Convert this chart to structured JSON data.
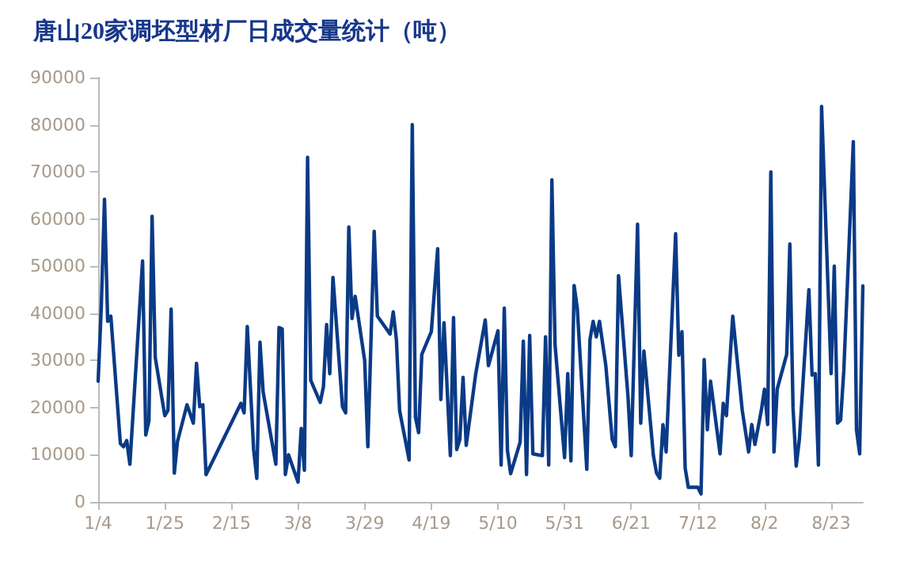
{
  "chart_data": {
    "type": "line",
    "title": "唐山20家调坯型材厂日成交量统计（吨）",
    "x": [
      "--01-04",
      "--01-05",
      "--01-06",
      "--01-07",
      "--01-08",
      "--01-11",
      "--01-12",
      "--01-13",
      "--01-14",
      "--01-18",
      "--01-19",
      "--01-20",
      "--01-21",
      "--01-22",
      "--01-25",
      "--01-26",
      "--01-27",
      "--01-28",
      "--01-29",
      "--02-01",
      "--02-03",
      "--02-04",
      "--02-05",
      "--02-06",
      "--02-07",
      "--02-18",
      "--02-19",
      "--02-20",
      "--02-22",
      "--02-23",
      "--02-24",
      "--02-25",
      "--03-01",
      "--03-02",
      "--03-03",
      "--03-04",
      "--03-05",
      "--03-08",
      "--03-09",
      "--03-10",
      "--03-11",
      "--03-12",
      "--03-15",
      "--03-16",
      "--03-17",
      "--03-18",
      "--03-19",
      "--03-22",
      "--03-23",
      "--03-24",
      "--03-25",
      "--03-26",
      "--03-29",
      "--03-30",
      "--04-01",
      "--04-02",
      "--04-06",
      "--04-07",
      "--04-08",
      "--04-09",
      "--04-12",
      "--04-13",
      "--04-14",
      "--04-15",
      "--04-16",
      "--04-19",
      "--04-21",
      "--04-22",
      "--04-23",
      "--04-25",
      "--04-26",
      "--04-27",
      "--04-28",
      "--04-29",
      "--04-30",
      "--05-03",
      "--05-06",
      "--05-07",
      "--05-10",
      "--05-11",
      "--05-12",
      "--05-13",
      "--05-14",
      "--05-17",
      "--05-18",
      "--05-19",
      "--05-20",
      "--05-21",
      "--05-24",
      "--05-25",
      "--05-26",
      "--05-27",
      "--05-28",
      "--05-31",
      "--06-01",
      "--06-02",
      "--06-03",
      "--06-04",
      "--06-07",
      "--06-08",
      "--06-09",
      "--06-10",
      "--06-11",
      "--06-13",
      "--06-15",
      "--06-16",
      "--06-17",
      "--06-20",
      "--06-21",
      "--06-23",
      "--06-24",
      "--06-25",
      "--06-28",
      "--06-29",
      "--06-30",
      "--07-01",
      "--07-02",
      "--07-05",
      "--07-06",
      "--07-07",
      "--07-08",
      "--07-09",
      "--07-12",
      "--07-13",
      "--07-14",
      "--07-15",
      "--07-16",
      "--07-19",
      "--07-20",
      "--07-21",
      "--07-22",
      "--07-23",
      "--07-26",
      "--07-28",
      "--07-29",
      "--07-30",
      "--08-01",
      "--08-02",
      "--08-03",
      "--08-04",
      "--08-05",
      "--08-06",
      "--08-09",
      "--08-10",
      "--08-11",
      "--08-12",
      "--08-13",
      "--08-16",
      "--08-17",
      "--08-18",
      "--08-19",
      "--08-20",
      "--08-23",
      "--08-24",
      "--08-25",
      "--08-26",
      "--08-27",
      "--08-30",
      "--08-31",
      "--09-01",
      "--09-02"
    ],
    "series": [
      {
        "color": "#0b3a86",
        "values": [
          25600,
          41700,
          64200,
          38300,
          39400,
          12400,
          11700,
          13000,
          8000,
          51100,
          14200,
          17200,
          60600,
          30600,
          18300,
          19400,
          40900,
          6100,
          12800,
          20600,
          16700,
          29400,
          20200,
          20600,
          5800,
          20900,
          18900,
          37200,
          11100,
          5000,
          33900,
          23300,
          8000,
          37000,
          36700,
          5800,
          10000,
          4200,
          15600,
          6700,
          73100,
          25800,
          21100,
          24400,
          37600,
          27200,
          47600,
          20200,
          18900,
          58300,
          38900,
          43600,
          30000,
          11700,
          57400,
          39400,
          35600,
          40300,
          34400,
          19400,
          8900,
          80000,
          18000,
          14700,
          31300,
          36100,
          53700,
          21700,
          38000,
          9800,
          39100,
          11100,
          13300,
          26400,
          12000,
          27200,
          38600,
          28900,
          36300,
          7800,
          41100,
          10900,
          6000,
          12700,
          34100,
          5800,
          35300,
          10200,
          9800,
          35000,
          7800,
          68300,
          33300,
          9400,
          27200,
          8700,
          45900,
          41100,
          6900,
          34400,
          38300,
          35000,
          38300,
          28900,
          13300,
          11700,
          48000,
          22200,
          9800,
          58900,
          16700,
          32000,
          9800,
          6100,
          5000,
          16400,
          10600,
          56900,
          31100,
          36100,
          7200,
          3100,
          3100,
          1700,
          30200,
          15300,
          25600,
          10200,
          20900,
          18300,
          28900,
          39400,
          19400,
          10600,
          16400,
          12200,
          19400,
          23900,
          16400,
          70000,
          10600,
          23900,
          31300,
          54700,
          20000,
          7600,
          13300,
          45000,
          26900,
          27200,
          7800,
          83900,
          27200,
          50000,
          16700,
          17400,
          27800,
          76400,
          15300,
          10200,
          45800
        ]
      }
    ],
    "xlim": [
      "--01-04",
      "--09-02"
    ],
    "xticks": [
      {
        "value": "--01-04",
        "label": "1/4"
      },
      {
        "value": "--01-25",
        "label": "1/25"
      },
      {
        "value": "--02-15",
        "label": "2/15"
      },
      {
        "value": "--03-08",
        "label": "3/8"
      },
      {
        "value": "--03-29",
        "label": "3/29"
      },
      {
        "value": "--04-19",
        "label": "4/19"
      },
      {
        "value": "--05-10",
        "label": "5/10"
      },
      {
        "value": "--05-31",
        "label": "5/31"
      },
      {
        "value": "--06-21",
        "label": "6/21"
      },
      {
        "value": "--07-12",
        "label": "7/12"
      },
      {
        "value": "--08-02",
        "label": "8/2"
      },
      {
        "value": "--08-23",
        "label": "8/23"
      }
    ],
    "ylim": [
      0,
      90000
    ],
    "yticks": [
      0,
      10000,
      20000,
      30000,
      40000,
      50000,
      60000,
      70000,
      80000,
      90000
    ],
    "grid": false,
    "marker": "none",
    "line_style": "solid"
  }
}
